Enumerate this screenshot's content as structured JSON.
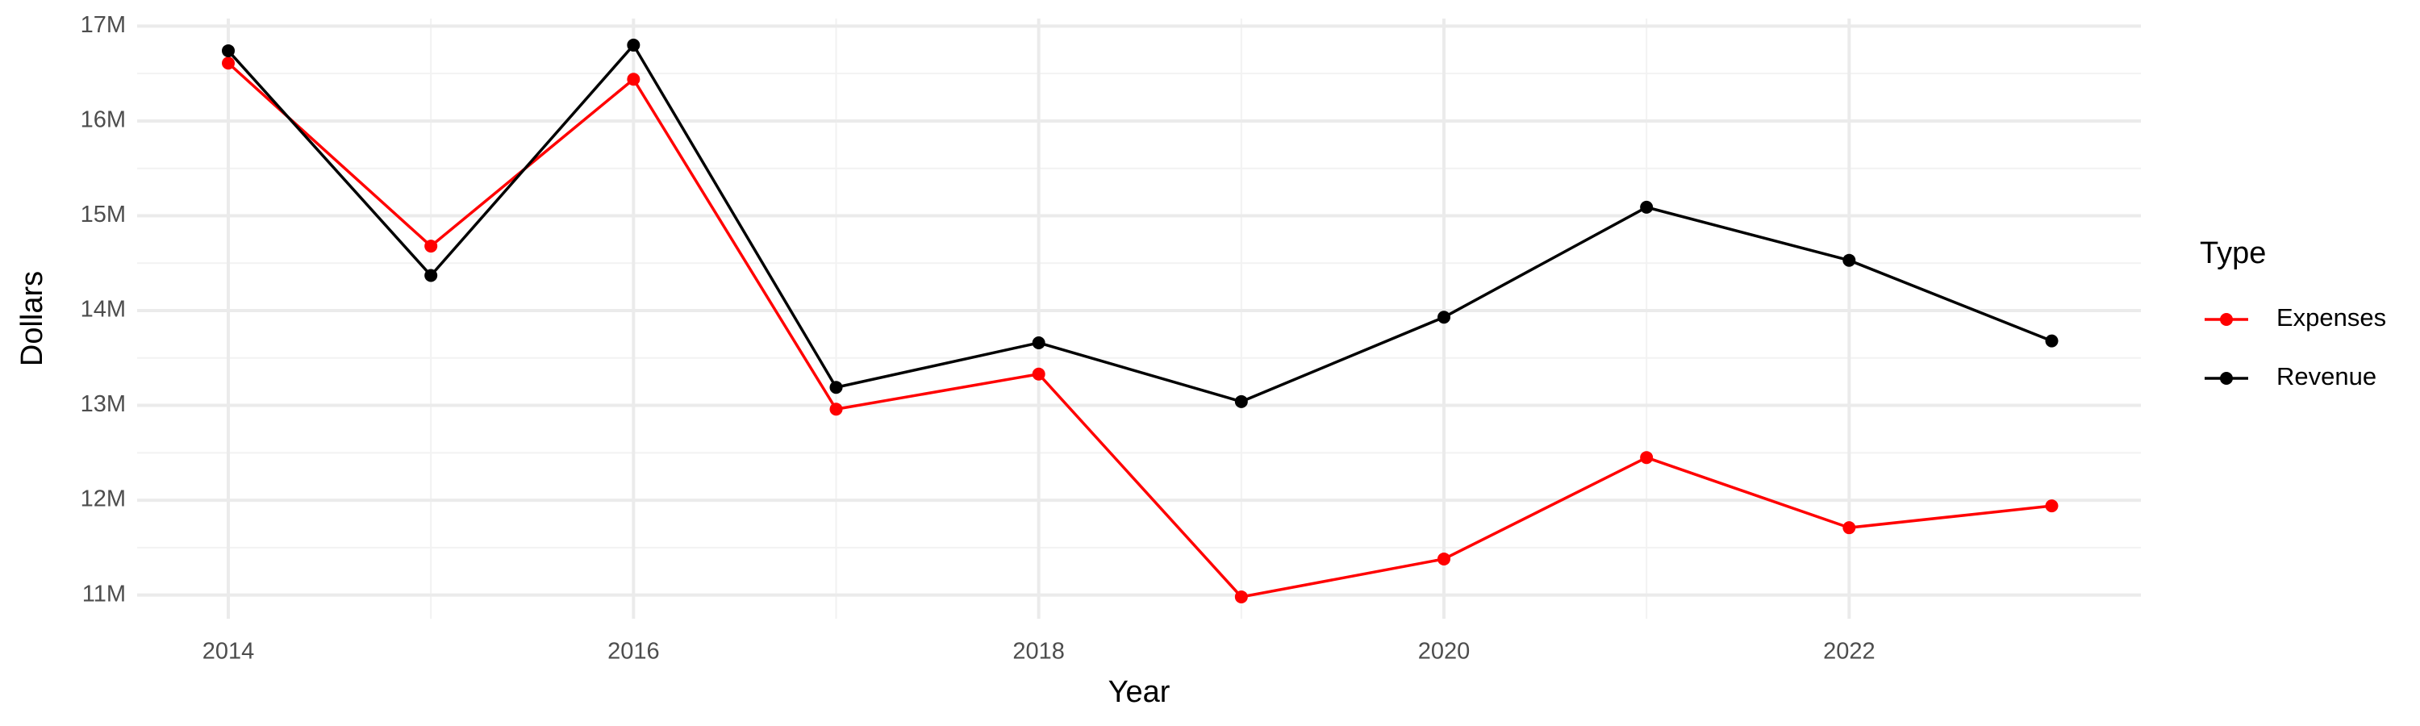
{
  "chart_data": {
    "type": "line",
    "x_label": "Year",
    "y_label": "Dollars",
    "legend_title": "Type",
    "x": [
      2014,
      2015,
      2016,
      2017,
      2018,
      2019,
      2020,
      2021,
      2022,
      2023
    ],
    "series": [
      {
        "name": "Expenses",
        "color": "#ff0000",
        "values": [
          16610000,
          14680000,
          16440000,
          12960000,
          13330000,
          10980000,
          11380000,
          12450000,
          11710000,
          11940000
        ]
      },
      {
        "name": "Revenue",
        "color": "#000000",
        "values": [
          16740000,
          14370000,
          16800000,
          13190000,
          13660000,
          13040000,
          13930000,
          15090000,
          14530000,
          13680000
        ]
      }
    ],
    "xlim": [
      2013.55,
      2023.44
    ],
    "xticks": [
      2014,
      2016,
      2018,
      2020,
      2022
    ],
    "ylim": [
      10750000,
      17080000
    ],
    "yticks": [
      {
        "value": 11000000,
        "label": "11M"
      },
      {
        "value": 12000000,
        "label": "12M"
      },
      {
        "value": 13000000,
        "label": "13M"
      },
      {
        "value": 14000000,
        "label": "14M"
      },
      {
        "value": 15000000,
        "label": "15M"
      },
      {
        "value": 16000000,
        "label": "16M"
      },
      {
        "value": 17000000,
        "label": "17M"
      }
    ],
    "grid": true,
    "legend_position": "right"
  }
}
